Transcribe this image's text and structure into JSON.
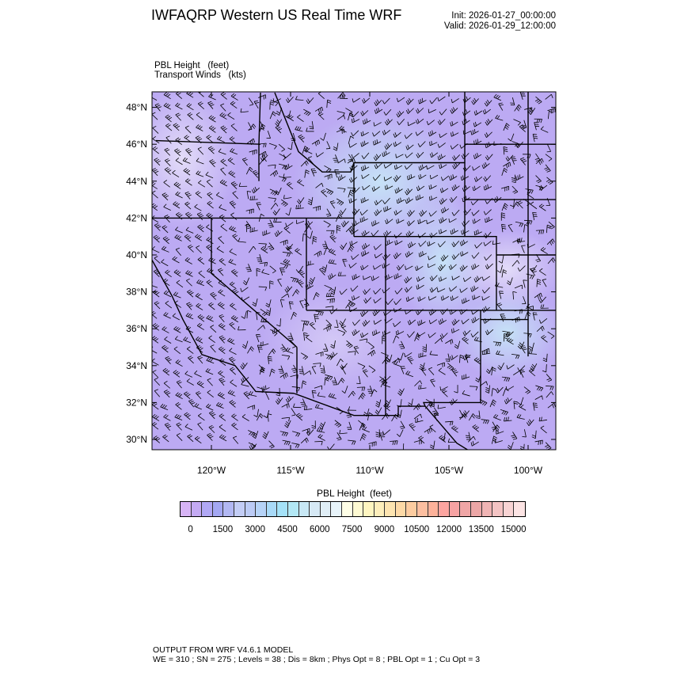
{
  "header": {
    "title": "IWFAQRP Western US Real Time WRF",
    "init": "Init: 2026-01-27_00:00:00",
    "valid": "Valid: 2026-01-29_12:00:00",
    "field_label": "PBL Height   (feet)",
    "wind_label": "Transport Winds   (kts)"
  },
  "map": {
    "lat_ticks": [
      "30°N",
      "32°N",
      "34°N",
      "36°N",
      "38°N",
      "40°N",
      "42°N",
      "44°N",
      "46°N",
      "48°N"
    ],
    "lon_ticks": [
      "120°W",
      "115°W",
      "110°W",
      "105°W",
      "100°W"
    ],
    "base_color": "#bcaaf3",
    "highlight_color": "#c2dcf6"
  },
  "colorbar": {
    "title": "PBL Height  (feet)",
    "labels": [
      "0",
      "1500",
      "3000",
      "4500",
      "6000",
      "7500",
      "9000",
      "10500",
      "12000",
      "13500",
      "15000"
    ],
    "colors": [
      "#d7b4f5",
      "#c4aaf3",
      "#b1a8f5",
      "#a4a8f3",
      "#b2b8f3",
      "#c3cdf5",
      "#bccbf5",
      "#b6d3f7",
      "#a9daf8",
      "#a5e2f8",
      "#b3e8f5",
      "#c8e8f5",
      "#d6e9f5",
      "#e0eef6",
      "#e8f4fa",
      "#fefee6",
      "#fefad2",
      "#fef5c0",
      "#fdeebb",
      "#fde4b0",
      "#fdd9a6",
      "#fdcca0",
      "#fdbfa0",
      "#fdb29a",
      "#fca5a0",
      "#f7a3a3",
      "#f0a6a6",
      "#eca6a6",
      "#f0b4b4",
      "#f4c4c4",
      "#f8d4d4",
      "#fce4e4"
    ]
  },
  "footer": {
    "line1": "OUTPUT FROM WRF V4.6.1 MODEL",
    "line2": "WE = 310 ; SN = 275 ; Levels = 38 ; Dis = 8km ; Phys Opt = 8 ; PBL Opt = 1 ; Cu Opt = 3"
  }
}
